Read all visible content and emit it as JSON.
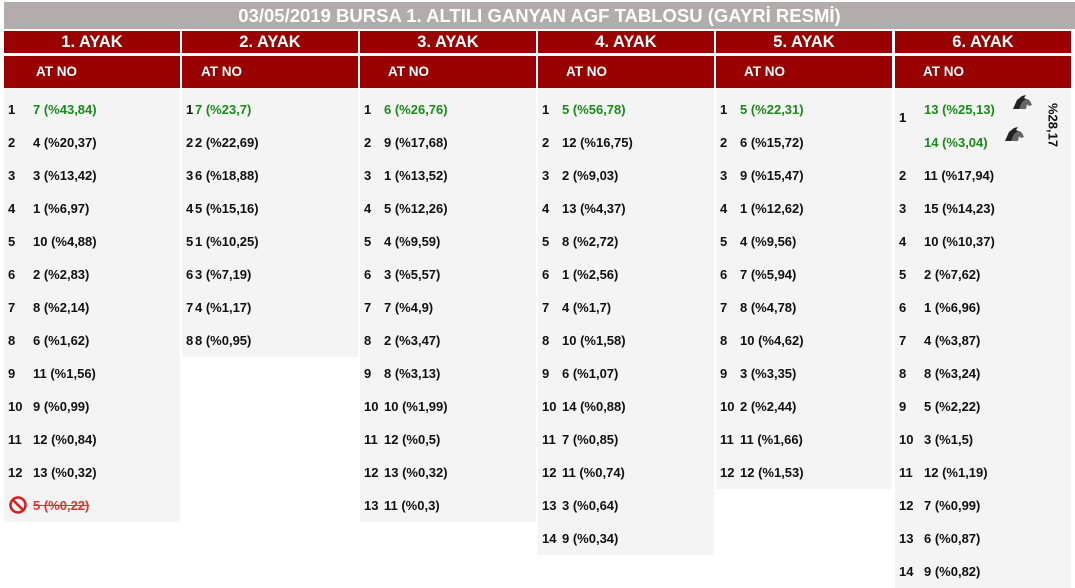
{
  "title": "03/05/2019 BURSA 1. ALTILI GANYAN AGF TABLOSU (GAYRİ RESMİ)",
  "colors": {
    "header_bg": "#990000",
    "title_bg": "#b2acac",
    "winner": "#1a8a1a",
    "scratched": "#e03030",
    "row_bg": "#f4f4f4"
  },
  "legs": [
    {
      "name": "1. AYAK",
      "sub": "AT NO",
      "rows": [
        {
          "rank": "1",
          "value": "7 (%43,84)",
          "winner": true
        },
        {
          "rank": "2",
          "value": "4 (%20,37)"
        },
        {
          "rank": "3",
          "value": "3 (%13,42)"
        },
        {
          "rank": "4",
          "value": "1 (%6,97)"
        },
        {
          "rank": "5",
          "value": "10 (%4,88)"
        },
        {
          "rank": "6",
          "value": "2 (%2,83)"
        },
        {
          "rank": "7",
          "value": "8 (%2,14)"
        },
        {
          "rank": "8",
          "value": "6 (%1,62)"
        },
        {
          "rank": "9",
          "value": "11 (%1,56)"
        },
        {
          "rank": "10",
          "value": "9 (%0,99)"
        },
        {
          "rank": "11",
          "value": "12 (%0,84)"
        },
        {
          "rank": "12",
          "value": "13 (%0,32)"
        },
        {
          "rank": "",
          "value": "5 (%0,22)",
          "scratched": true,
          "icon": "no-entry-icon"
        }
      ]
    },
    {
      "name": "2. AYAK",
      "sub": "AT NO",
      "rows": [
        {
          "rank": "1",
          "value": "7 (%23,7)",
          "winner": true
        },
        {
          "rank": "2",
          "value": "2 (%22,69)"
        },
        {
          "rank": "3",
          "value": "6 (%18,88)"
        },
        {
          "rank": "4",
          "value": "5 (%15,16)"
        },
        {
          "rank": "5",
          "value": "1 (%10,25)"
        },
        {
          "rank": "6",
          "value": "3 (%7,19)"
        },
        {
          "rank": "7",
          "value": "4 (%1,17)"
        },
        {
          "rank": "8",
          "value": "8 (%0,95)"
        }
      ]
    },
    {
      "name": "3. AYAK",
      "sub": "AT NO",
      "rows": [
        {
          "rank": "1",
          "value": "6 (%26,76)",
          "winner": true
        },
        {
          "rank": "2",
          "value": "9 (%17,68)"
        },
        {
          "rank": "3",
          "value": "1 (%13,52)"
        },
        {
          "rank": "4",
          "value": "5 (%12,26)"
        },
        {
          "rank": "5",
          "value": "4 (%9,59)"
        },
        {
          "rank": "6",
          "value": "3 (%5,57)"
        },
        {
          "rank": "7",
          "value": "7 (%4,9)"
        },
        {
          "rank": "8",
          "value": "2 (%3,47)"
        },
        {
          "rank": "9",
          "value": "8 (%3,13)"
        },
        {
          "rank": "10",
          "value": "10 (%1,99)"
        },
        {
          "rank": "11",
          "value": "12 (%0,5)"
        },
        {
          "rank": "12",
          "value": "13 (%0,32)"
        },
        {
          "rank": "13",
          "value": "11 (%0,3)"
        }
      ]
    },
    {
      "name": "4. AYAK",
      "sub": "AT NO",
      "rows": [
        {
          "rank": "1",
          "value": "5 (%56,78)",
          "winner": true
        },
        {
          "rank": "2",
          "value": "12 (%16,75)"
        },
        {
          "rank": "3",
          "value": "2 (%9,03)"
        },
        {
          "rank": "4",
          "value": "13 (%4,37)"
        },
        {
          "rank": "5",
          "value": "8 (%2,72)"
        },
        {
          "rank": "6",
          "value": "1 (%2,56)"
        },
        {
          "rank": "7",
          "value": "4 (%1,7)"
        },
        {
          "rank": "8",
          "value": "10 (%1,58)"
        },
        {
          "rank": "9",
          "value": "6 (%1,07)"
        },
        {
          "rank": "10",
          "value": "14 (%0,88)"
        },
        {
          "rank": "11",
          "value": "7 (%0,85)"
        },
        {
          "rank": "12",
          "value": "11 (%0,74)"
        },
        {
          "rank": "13",
          "value": "3 (%0,64)"
        },
        {
          "rank": "14",
          "value": "9 (%0,34)"
        }
      ]
    },
    {
      "name": "5. AYAK",
      "sub": "AT NO",
      "rows": [
        {
          "rank": "1",
          "value": "5 (%22,31)",
          "winner": true
        },
        {
          "rank": "2",
          "value": "6 (%15,72)"
        },
        {
          "rank": "3",
          "value": "9 (%15,47)"
        },
        {
          "rank": "4",
          "value": "1 (%12,62)"
        },
        {
          "rank": "5",
          "value": "4 (%9,56)"
        },
        {
          "rank": "6",
          "value": "7 (%5,94)"
        },
        {
          "rank": "7",
          "value": "8 (%4,78)"
        },
        {
          "rank": "8",
          "value": "10 (%4,62)"
        },
        {
          "rank": "9",
          "value": "3 (%3,35)"
        },
        {
          "rank": "10",
          "value": "2 (%2,44)"
        },
        {
          "rank": "11",
          "value": "11 (%1,66)"
        },
        {
          "rank": "12",
          "value": "12 (%1,53)"
        }
      ]
    },
    {
      "name": "6. AYAK",
      "sub": "AT NO",
      "top": {
        "rank": "1",
        "line1": "13 (%25,13)",
        "line2": "14 (%3,04)",
        "combined": "%28,17",
        "icon": "horse-head-icon"
      },
      "rows": [
        {
          "rank": "2",
          "value": "11 (%17,94)"
        },
        {
          "rank": "3",
          "value": "15 (%14,23)"
        },
        {
          "rank": "4",
          "value": "10 (%10,37)"
        },
        {
          "rank": "5",
          "value": "2 (%7,62)"
        },
        {
          "rank": "6",
          "value": "1 (%6,96)"
        },
        {
          "rank": "7",
          "value": "4 (%3,87)"
        },
        {
          "rank": "8",
          "value": "8 (%3,24)"
        },
        {
          "rank": "9",
          "value": "5 (%2,22)"
        },
        {
          "rank": "10",
          "value": "3 (%1,5)"
        },
        {
          "rank": "11",
          "value": "12 (%1,19)"
        },
        {
          "rank": "12",
          "value": "7 (%0,99)"
        },
        {
          "rank": "13",
          "value": "6 (%0,87)"
        },
        {
          "rank": "14",
          "value": "9 (%0,82)"
        }
      ]
    }
  ]
}
